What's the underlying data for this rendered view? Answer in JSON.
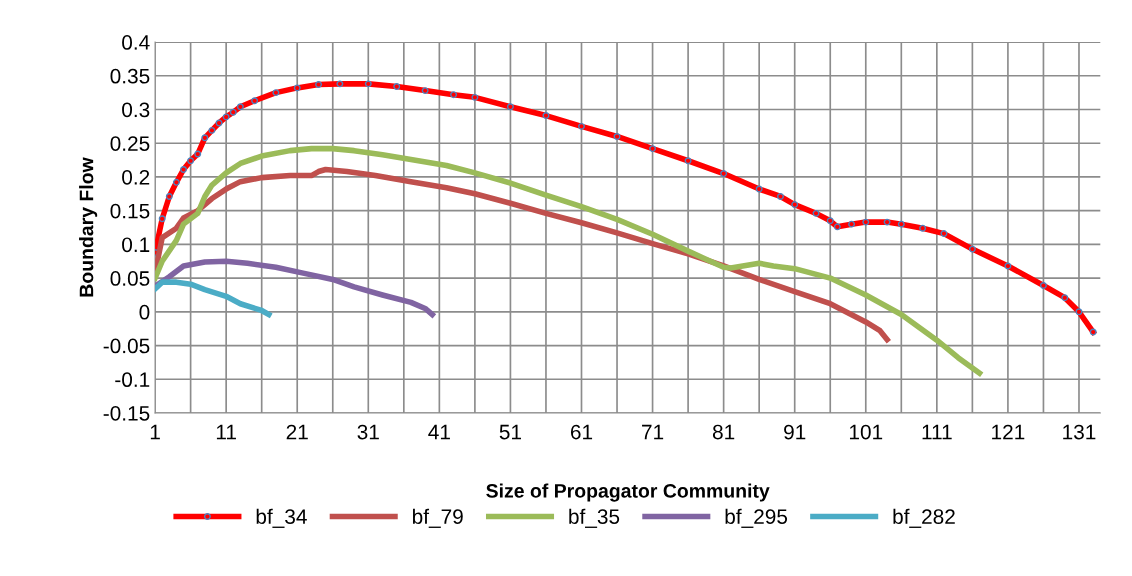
{
  "chart_data": {
    "type": "line",
    "xlabel": "Size of Propagator Community",
    "ylabel": "Boundary Flow",
    "xlim": [
      1,
      134
    ],
    "xticks": [
      1,
      {
        "value": 6,
        "label": null
      },
      11,
      {
        "value": 16,
        "label": null
      },
      21,
      {
        "value": 26,
        "label": null
      },
      31,
      {
        "value": 36,
        "label": null
      },
      41,
      {
        "value": 46,
        "label": null
      },
      51,
      {
        "value": 56,
        "label": null
      },
      61,
      {
        "value": 66,
        "label": null
      },
      71,
      {
        "value": 76,
        "label": null
      },
      81,
      {
        "value": 86,
        "label": null
      },
      91,
      {
        "value": 96,
        "label": null
      },
      101,
      {
        "value": 106,
        "label": null
      },
      111,
      {
        "value": 116,
        "label": null
      },
      121,
      {
        "value": 126,
        "label": null
      },
      131
    ],
    "ylim": [
      -0.15,
      0.4
    ],
    "yticks": [
      -0.15,
      -0.1,
      -0.05,
      0,
      0.05,
      0.1,
      0.15,
      0.2,
      0.25,
      0.3,
      0.35,
      0.4
    ],
    "grid": true,
    "legend": "bottom",
    "series": [
      {
        "name": "bf_34",
        "color": "#ff0000",
        "marker": "circle",
        "x": [
          1,
          2,
          3,
          4,
          5,
          6,
          7,
          8,
          9,
          10,
          11,
          12,
          13,
          15,
          18,
          21,
          24,
          27,
          31,
          35,
          39,
          43,
          46,
          51,
          56,
          61,
          66,
          71,
          76,
          81,
          86,
          89,
          91,
          94,
          96,
          97,
          99,
          101,
          104,
          106,
          109,
          112,
          116,
          121,
          126,
          129,
          131,
          133
        ],
        "values": [
          0.088,
          0.138,
          0.171,
          0.192,
          0.211,
          0.224,
          0.234,
          0.258,
          0.269,
          0.28,
          0.289,
          0.296,
          0.304,
          0.313,
          0.325,
          0.332,
          0.337,
          0.338,
          0.338,
          0.334,
          0.328,
          0.322,
          0.318,
          0.304,
          0.291,
          0.275,
          0.26,
          0.242,
          0.224,
          0.205,
          0.182,
          0.171,
          0.159,
          0.146,
          0.135,
          0.126,
          0.13,
          0.133,
          0.133,
          0.13,
          0.124,
          0.116,
          0.093,
          0.068,
          0.039,
          0.021,
          0.0,
          -0.03
        ]
      },
      {
        "name": "bf_79",
        "color": "#c0504d",
        "marker": "none",
        "x": [
          1,
          2,
          4,
          5,
          7,
          9,
          11,
          13,
          16,
          20,
          23,
          24,
          25,
          28,
          32,
          37,
          42,
          46,
          51,
          56,
          61,
          66,
          71,
          76,
          81,
          86,
          91,
          96,
          101,
          103,
          104
        ],
        "values": [
          0.058,
          0.11,
          0.124,
          0.139,
          0.15,
          0.168,
          0.182,
          0.193,
          0.199,
          0.202,
          0.202,
          0.208,
          0.211,
          0.208,
          0.202,
          0.193,
          0.184,
          0.175,
          0.161,
          0.146,
          0.132,
          0.117,
          0.101,
          0.086,
          0.068,
          0.048,
          0.03,
          0.012,
          -0.015,
          -0.028,
          -0.041
        ]
      },
      {
        "name": "bf_35",
        "color": "#9bbb59",
        "marker": "none",
        "x": [
          1,
          2,
          4,
          5,
          7,
          8,
          9,
          11,
          13,
          16,
          20,
          23,
          26,
          29,
          33,
          37,
          42,
          46,
          51,
          56,
          61,
          66,
          71,
          76,
          81,
          82,
          86,
          88,
          91,
          96,
          101,
          106,
          111,
          114,
          117
        ],
        "values": [
          0.05,
          0.075,
          0.106,
          0.13,
          0.146,
          0.171,
          0.188,
          0.206,
          0.22,
          0.231,
          0.239,
          0.242,
          0.242,
          0.239,
          0.233,
          0.226,
          0.217,
          0.206,
          0.191,
          0.173,
          0.156,
          0.137,
          0.115,
          0.09,
          0.066,
          0.065,
          0.072,
          0.068,
          0.064,
          0.05,
          0.025,
          -0.004,
          -0.042,
          -0.068,
          -0.091
        ]
      },
      {
        "name": "bf_295",
        "color": "#8064a2",
        "marker": "none",
        "x": [
          1,
          3,
          5,
          8,
          11,
          14,
          18,
          22,
          26,
          29,
          33,
          37,
          39,
          40
        ],
        "values": [
          0.038,
          0.052,
          0.068,
          0.074,
          0.075,
          0.072,
          0.066,
          0.057,
          0.048,
          0.037,
          0.025,
          0.014,
          0.005,
          -0.004
        ]
      },
      {
        "name": "bf_282",
        "color": "#4bacc6",
        "marker": "none",
        "x": [
          1,
          2,
          4,
          6,
          8,
          11,
          13,
          16,
          17
        ],
        "values": [
          0.034,
          0.044,
          0.044,
          0.041,
          0.033,
          0.023,
          0.012,
          0.002,
          -0.004
        ]
      }
    ]
  }
}
